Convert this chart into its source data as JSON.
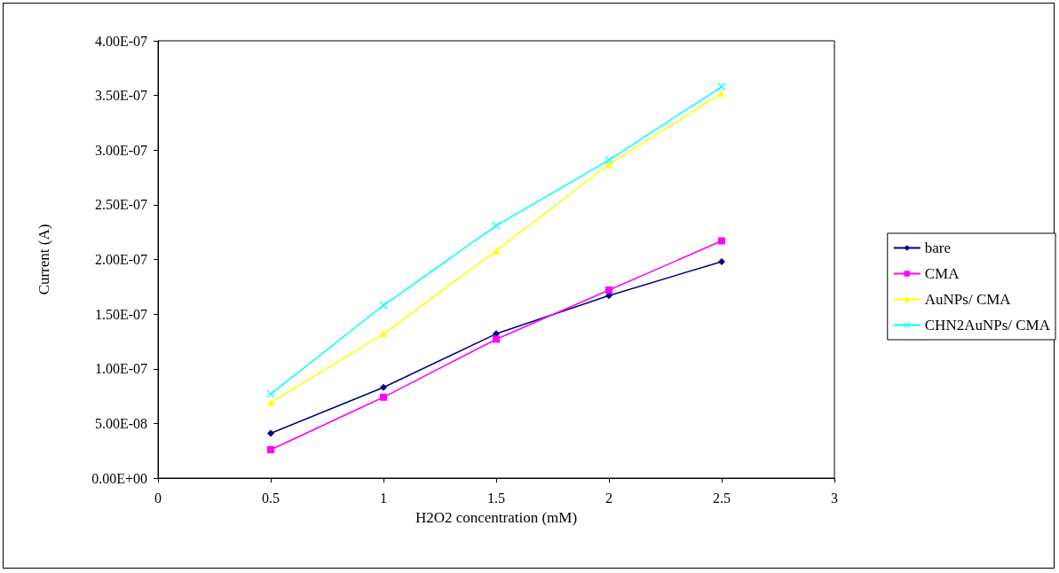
{
  "chart_data": {
    "type": "line",
    "xlabel": "H2O2 concentration (mM)",
    "ylabel": "Current (A)",
    "x": [
      0.5,
      1,
      1.5,
      2,
      2.5
    ],
    "xlim": [
      0,
      3
    ],
    "xticks": [
      0,
      0.5,
      1,
      1.5,
      2,
      2.5,
      3
    ],
    "ylim": [
      0,
      4e-07
    ],
    "yticks": [
      {
        "value": 0,
        "label": "0.00E+00"
      },
      {
        "value": 5e-08,
        "label": "5.00E-08"
      },
      {
        "value": 1e-07,
        "label": "1.00E-07"
      },
      {
        "value": 1.5e-07,
        "label": "1.50E-07"
      },
      {
        "value": 2e-07,
        "label": "2.00E-07"
      },
      {
        "value": 2.5e-07,
        "label": "2.50E-07"
      },
      {
        "value": 3e-07,
        "label": "3.00E-07"
      },
      {
        "value": 3.5e-07,
        "label": "3.50E-07"
      },
      {
        "value": 4e-07,
        "label": "4.00E-07"
      }
    ],
    "grid": false,
    "legend": "right",
    "line_style": "solid",
    "series": [
      {
        "name": "bare",
        "color": "#000080",
        "marker": "diamond",
        "values": [
          4.1e-08,
          8.3e-08,
          1.32e-07,
          1.67e-07,
          1.98e-07
        ]
      },
      {
        "name": "CMA",
        "color": "#ff00ff",
        "marker": "square",
        "values": [
          2.6e-08,
          7.4e-08,
          1.27e-07,
          1.72e-07,
          2.17e-07
        ]
      },
      {
        "name": "AuNPs/ CMA",
        "color": "#ffff00",
        "marker": "triangle",
        "values": [
          6.9e-08,
          1.32e-07,
          2.08e-07,
          2.87e-07,
          3.52e-07
        ]
      },
      {
        "name": "CHN2AuNPs/ CMA",
        "color": "#00ffff",
        "marker": "cross",
        "values": [
          7.7e-08,
          1.58e-07,
          2.31e-07,
          2.91e-07,
          3.58e-07
        ]
      }
    ]
  }
}
